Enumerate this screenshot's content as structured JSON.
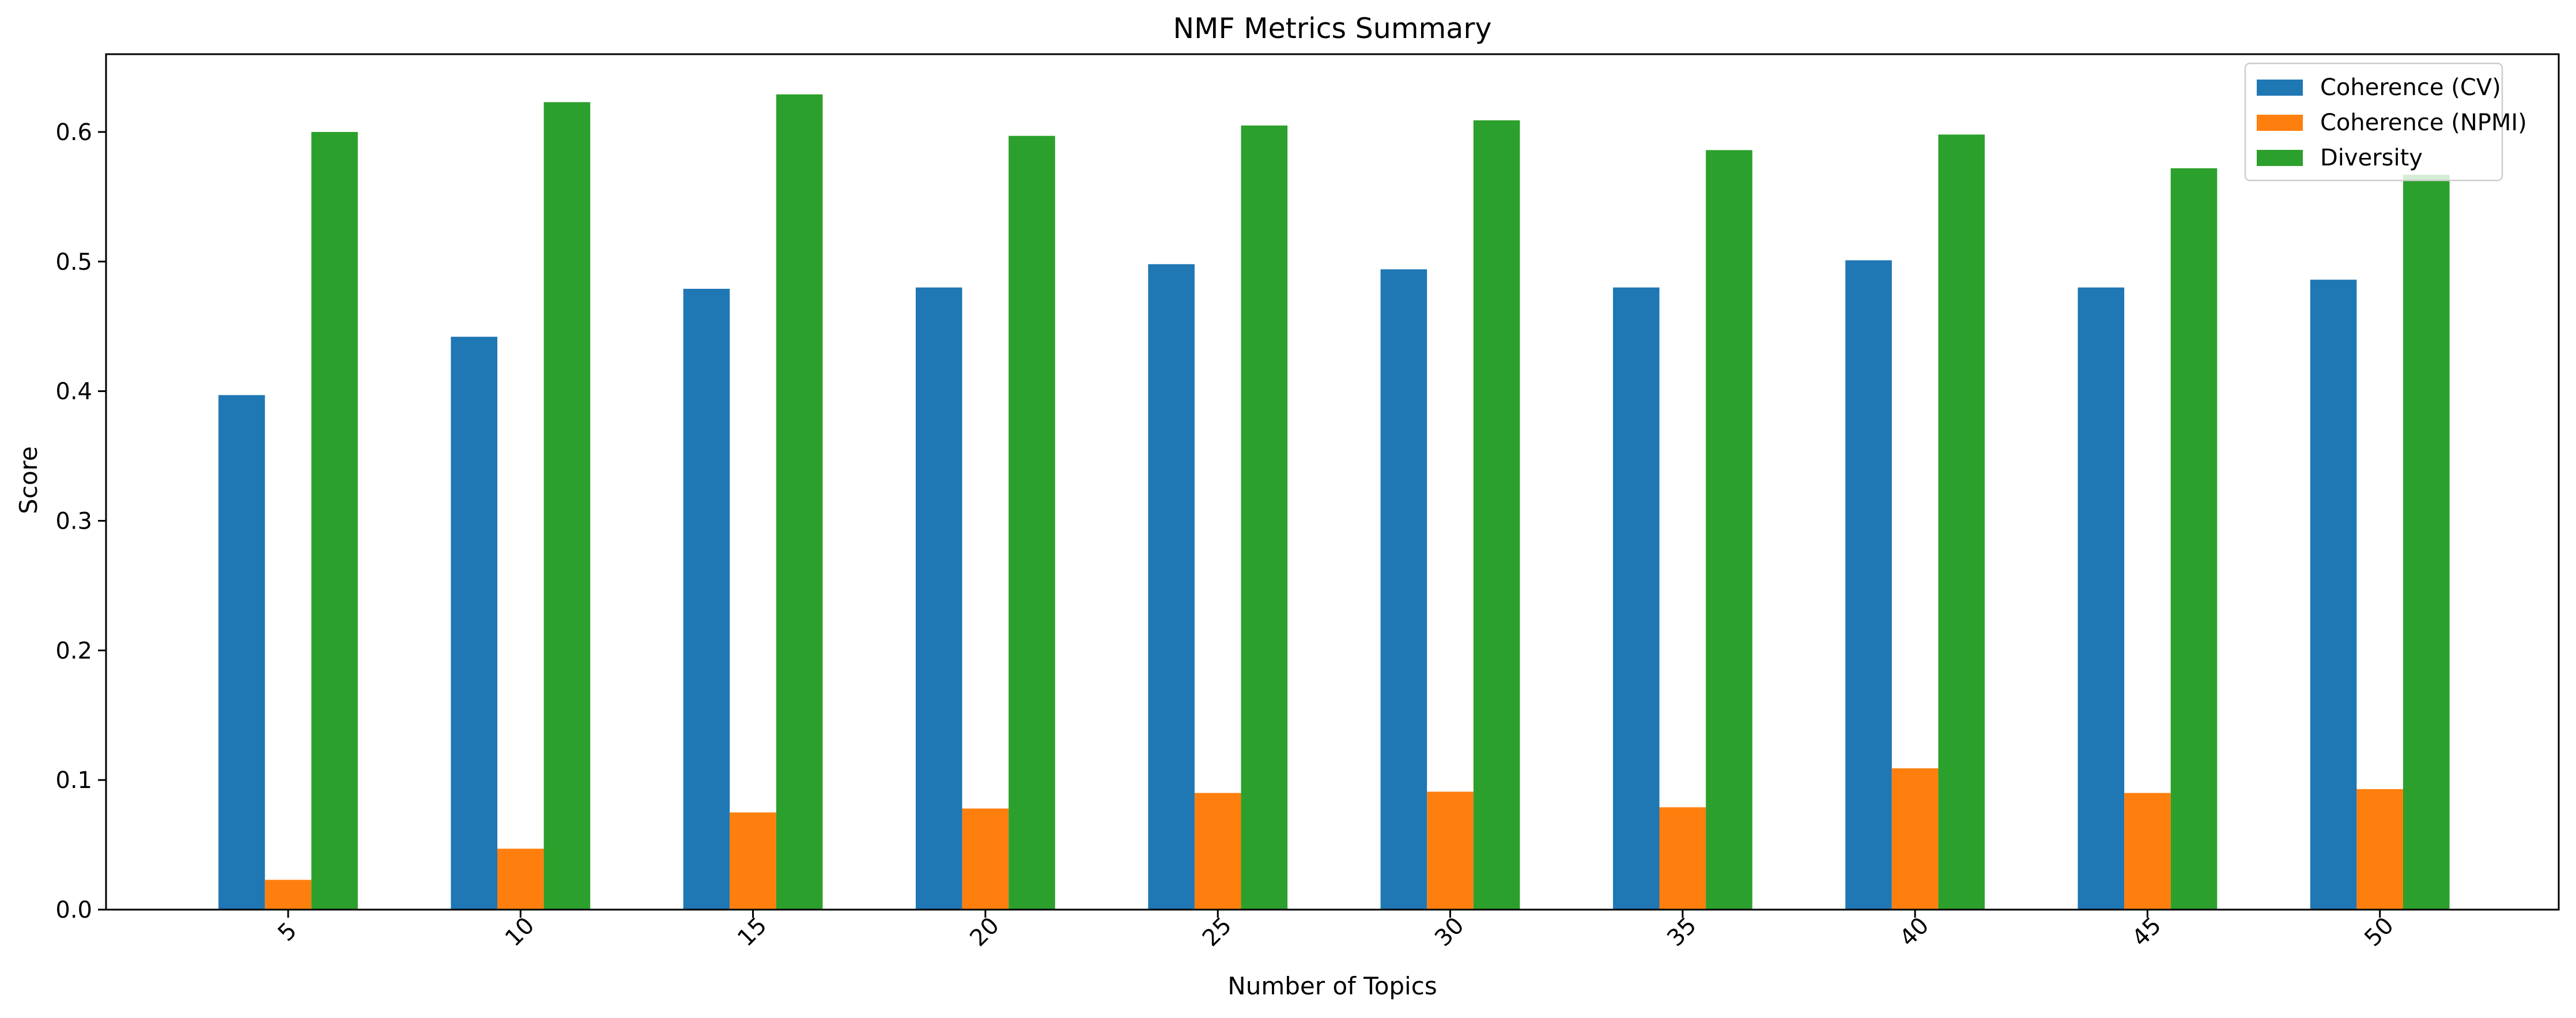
{
  "chart_data": {
    "type": "bar",
    "title": "NMF Metrics Summary",
    "xlabel": "Number of Topics",
    "ylabel": "Score",
    "categories": [
      "5",
      "10",
      "15",
      "20",
      "25",
      "30",
      "35",
      "40",
      "45",
      "50"
    ],
    "series": [
      {
        "name": "Coherence (CV)",
        "color": "#1f77b4",
        "values": [
          0.397,
          0.442,
          0.479,
          0.48,
          0.498,
          0.494,
          0.48,
          0.501,
          0.48,
          0.486
        ]
      },
      {
        "name": "Coherence (NPMI)",
        "color": "#ff7f0e",
        "values": [
          0.023,
          0.047,
          0.075,
          0.078,
          0.09,
          0.091,
          0.079,
          0.109,
          0.09,
          0.093
        ]
      },
      {
        "name": "Diversity",
        "color": "#2ca02c",
        "values": [
          0.6,
          0.623,
          0.629,
          0.597,
          0.605,
          0.609,
          0.586,
          0.598,
          0.572,
          0.567
        ]
      }
    ],
    "ylim": [
      0,
      0.66
    ],
    "yticks": [
      "0.0",
      "0.1",
      "0.2",
      "0.3",
      "0.4",
      "0.5",
      "0.6"
    ],
    "xtick_rotation": 45,
    "grid": false,
    "legend_position": "top-right"
  }
}
